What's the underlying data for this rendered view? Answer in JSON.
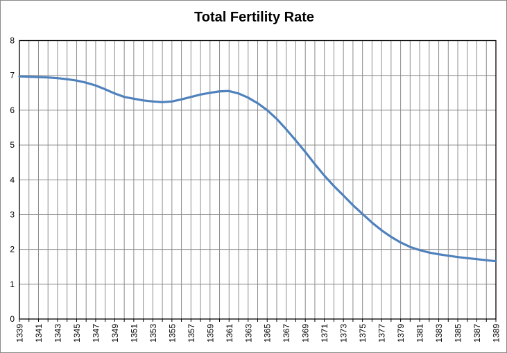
{
  "title": "Total Fertility Rate",
  "chart_data": {
    "type": "line",
    "title": "Total Fertility Rate",
    "xlabel": "",
    "ylabel": "",
    "x": [
      1339,
      1340,
      1341,
      1342,
      1343,
      1344,
      1345,
      1346,
      1347,
      1348,
      1349,
      1350,
      1351,
      1352,
      1353,
      1354,
      1355,
      1356,
      1357,
      1358,
      1359,
      1360,
      1361,
      1362,
      1363,
      1364,
      1365,
      1366,
      1367,
      1368,
      1369,
      1370,
      1371,
      1372,
      1373,
      1374,
      1375,
      1376,
      1377,
      1378,
      1379,
      1380,
      1381,
      1382,
      1383,
      1384,
      1385,
      1386,
      1387,
      1388,
      1389
    ],
    "series": [
      {
        "name": "Total Fertility Rate",
        "values": [
          6.97,
          6.96,
          6.95,
          6.94,
          6.92,
          6.89,
          6.85,
          6.79,
          6.71,
          6.6,
          6.48,
          6.38,
          6.33,
          6.28,
          6.25,
          6.23,
          6.25,
          6.31,
          6.38,
          6.45,
          6.5,
          6.54,
          6.55,
          6.48,
          6.36,
          6.2,
          6.0,
          5.75,
          5.45,
          5.13,
          4.8,
          4.45,
          4.12,
          3.82,
          3.55,
          3.27,
          3.02,
          2.77,
          2.55,
          2.36,
          2.2,
          2.07,
          1.98,
          1.91,
          1.86,
          1.82,
          1.78,
          1.75,
          1.72,
          1.69,
          1.66
        ]
      }
    ],
    "ylim": [
      0,
      8
    ],
    "y_ticks": [
      0,
      1,
      2,
      3,
      4,
      5,
      6,
      7,
      8
    ],
    "x_tick_labels": [
      "1339",
      "1341",
      "1343",
      "1345",
      "1347",
      "1349",
      "1351",
      "1353",
      "1355",
      "1357",
      "1359",
      "1361",
      "1363",
      "1365",
      "1367",
      "1369",
      "1371",
      "1373",
      "1375",
      "1377",
      "1379",
      "1381",
      "1383",
      "1385",
      "1387",
      "1389"
    ],
    "x_label_rotation_deg": -90,
    "grid": "both",
    "legend_position": "none",
    "colors": {
      "line": "#4F81BD",
      "gridline": "#8C8C8C",
      "plot_border": "#000000",
      "tick": "#000000",
      "text": "#000000",
      "background": "#FFFFFF",
      "outer_border": "#898989"
    }
  }
}
